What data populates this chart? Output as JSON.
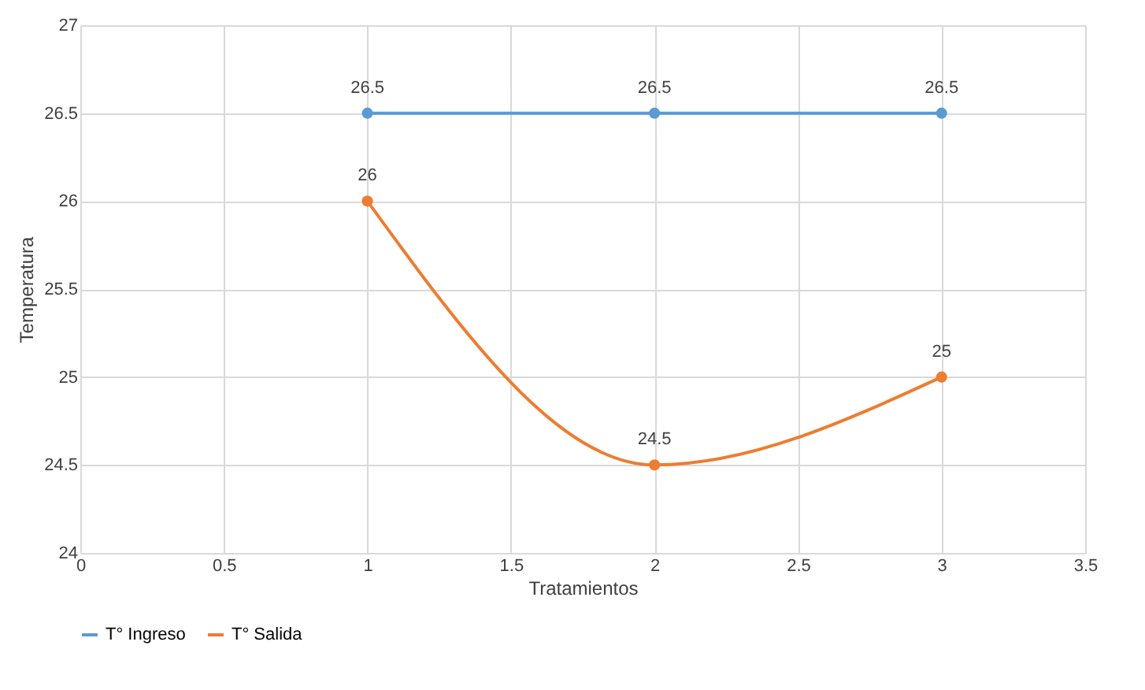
{
  "chart_data": {
    "type": "line",
    "xlabel": "Tratamientos",
    "ylabel": "Temperatura",
    "x": [
      1,
      2,
      3
    ],
    "series": [
      {
        "name": "T° Ingreso",
        "color": "#5b9bd5",
        "values": [
          26.5,
          26.5,
          26.5
        ]
      },
      {
        "name": "T° Salida",
        "color": "#ed7d31",
        "values": [
          26,
          24.5,
          25
        ]
      }
    ],
    "xlim": [
      0,
      3.5
    ],
    "xticks": [
      0,
      0.5,
      1,
      1.5,
      2,
      2.5,
      3,
      3.5
    ],
    "ylim": [
      24,
      27
    ],
    "yticks": [
      24,
      24.5,
      25,
      25.5,
      26,
      26.5,
      27
    ],
    "grid": true,
    "legend": "bottom",
    "marker": "circle",
    "line_style": "solid",
    "data_labels": true
  }
}
